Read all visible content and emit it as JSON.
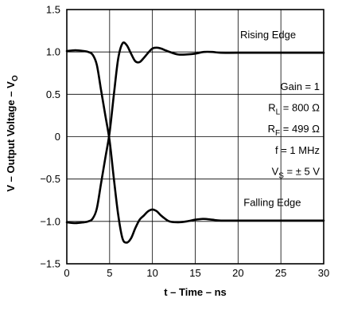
{
  "chart_data": {
    "type": "line",
    "xlabel": "t – Time – ns",
    "ylabel": "V – Output Voltage – V",
    "ylabel_sub": "O",
    "xlim": [
      0,
      30
    ],
    "ylim": [
      -1.5,
      1.5
    ],
    "x_ticks": [
      0,
      5,
      10,
      15,
      20,
      25,
      30
    ],
    "x_tick_labels": [
      "0",
      "5",
      "10",
      "15",
      "20",
      "25",
      "30"
    ],
    "y_ticks": [
      1.5,
      1.0,
      0.5,
      0,
      -0.5,
      -1.0,
      -1.5
    ],
    "y_tick_labels": [
      "1.5",
      "1.0",
      "0.5",
      "0",
      "−0.5",
      "−1.0",
      "−1.5"
    ],
    "grid": true,
    "series": [
      {
        "name": "Rising Edge",
        "x": [
          0,
          1,
          2,
          2.5,
          3,
          3.5,
          4,
          4.5,
          5,
          5.5,
          6,
          6.5,
          7,
          7.5,
          8,
          8.5,
          9,
          9.5,
          10,
          10.5,
          11,
          11.5,
          12,
          13,
          14,
          15,
          16,
          17,
          18,
          20,
          25,
          30
        ],
        "y": [
          -1.01,
          -1.02,
          -1.01,
          -1.0,
          -0.97,
          -0.85,
          -0.55,
          -0.25,
          0.05,
          0.5,
          0.92,
          1.1,
          1.08,
          0.98,
          0.89,
          0.88,
          0.93,
          0.99,
          1.04,
          1.05,
          1.04,
          1.02,
          1.0,
          0.97,
          0.97,
          0.98,
          1.0,
          1.0,
          0.99,
          0.99,
          0.99,
          0.99
        ]
      },
      {
        "name": "Falling Edge",
        "x": [
          0,
          1,
          2,
          2.5,
          3,
          3.5,
          4,
          4.5,
          5,
          5.5,
          6,
          6.5,
          7,
          7.5,
          8,
          8.5,
          9,
          9.5,
          10,
          10.5,
          11,
          11.5,
          12,
          13,
          14,
          15,
          16,
          17,
          18,
          20,
          25,
          30
        ],
        "y": [
          1.01,
          1.02,
          1.01,
          1.0,
          0.97,
          0.85,
          0.55,
          0.25,
          -0.05,
          -0.5,
          -0.92,
          -1.2,
          -1.25,
          -1.2,
          -1.08,
          -0.98,
          -0.93,
          -0.88,
          -0.86,
          -0.88,
          -0.93,
          -0.97,
          -1.0,
          -1.01,
          -1.0,
          -0.98,
          -0.97,
          -0.98,
          -0.99,
          -0.99,
          -0.99,
          -0.99
        ]
      }
    ],
    "series_labels": {
      "rising": "Rising Edge",
      "falling": "Falling Edge"
    },
    "annotations": [
      {
        "text": "Gain = 1"
      },
      {
        "main": "R",
        "sub": "L",
        "rest": " = 800 Ω"
      },
      {
        "main": "R",
        "sub": "F",
        "rest": " = 499 Ω"
      },
      {
        "text": "f = 1 MHz"
      },
      {
        "main": "V",
        "sub": "S",
        "rest": " = ± 5 V"
      }
    ],
    "annotation_positions_in_data_units": {
      "rising_label": [
        23.5,
        1.16
      ],
      "falling_label": [
        24.0,
        -0.82
      ],
      "gain": [
        30,
        0.55
      ],
      "rl": [
        30,
        0.3
      ],
      "rf": [
        30,
        0.05
      ],
      "freq": [
        30,
        -0.2
      ],
      "vs": [
        30,
        -0.45
      ]
    }
  }
}
